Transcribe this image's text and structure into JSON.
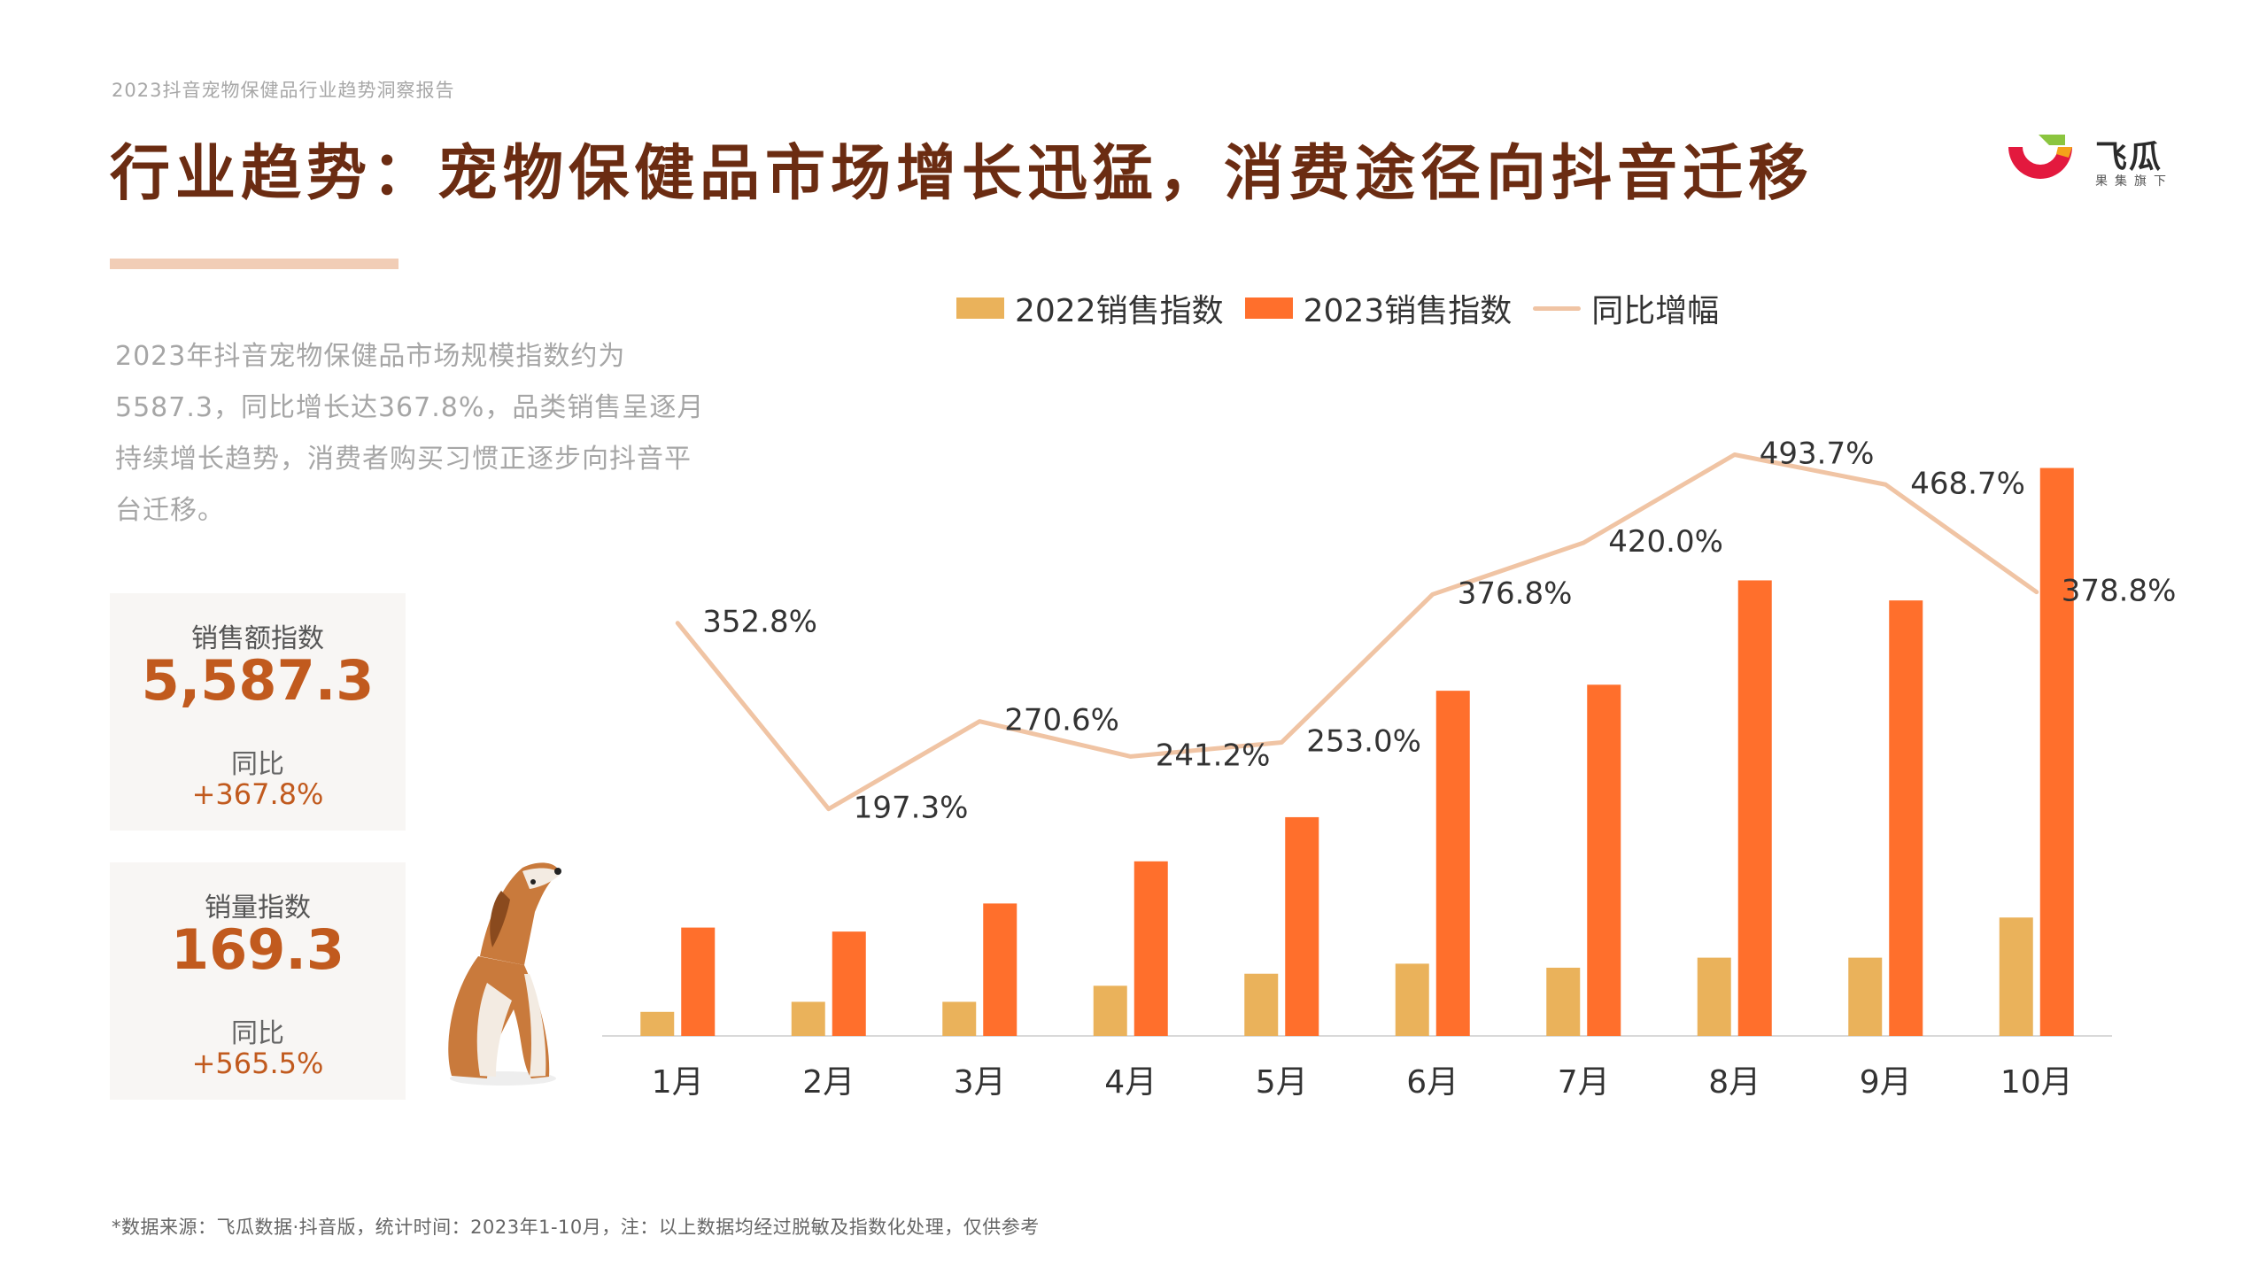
{
  "header": {
    "report_label": "2023抖音宠物保健品行业趋势洞察报告",
    "title": "行业趋势：宠物保健品市场增长迅猛，消费途径向抖音迁移"
  },
  "logo": {
    "name": "飞瓜",
    "tagline": "果集旗下",
    "colors": {
      "red": "#e3193e",
      "green": "#8bc53f",
      "orange": "#f4a21a"
    }
  },
  "description": "2023年抖音宠物保健品市场规模指数约为5587.3，同比增长达367.8%，品类销售呈逐月持续增长趋势，消费者购买习惯正逐步向抖音平台迁移。",
  "stats": [
    {
      "label": "销售额指数",
      "value": "5,587.3",
      "yoy_label": "同比",
      "yoy_value": "+367.8%"
    },
    {
      "label": "销量指数",
      "value": "169.3",
      "yoy_label": "同比",
      "yoy_value": "+565.5%"
    }
  ],
  "colors": {
    "series_2022": "#eab25b",
    "series_2023": "#ff6f2c",
    "yoy_line": "#f0c4a4",
    "title": "#6b2c12",
    "accent": "#c15a1e"
  },
  "chart_data": {
    "type": "bar",
    "title": "",
    "xlabel": "",
    "ylabel": "",
    "grid": false,
    "legend": "top",
    "categories": [
      "1月",
      "2月",
      "3月",
      "4月",
      "5月",
      "6月",
      "7月",
      "8月",
      "9月",
      "10月"
    ],
    "series": [
      {
        "name": "2022销售指数",
        "type": "bar",
        "values": [
          60,
          85,
          85,
          125,
          155,
          180,
          170,
          195,
          195,
          295
        ]
      },
      {
        "name": "2023销售指数",
        "type": "bar",
        "values": [
          270,
          260,
          330,
          435,
          545,
          860,
          875,
          1135,
          1085,
          1415
        ]
      },
      {
        "name": "同比增幅",
        "type": "line",
        "axis": "secondary",
        "values": [
          352.8,
          197.3,
          270.6,
          241.2,
          253.0,
          376.8,
          420.0,
          493.7,
          468.7,
          378.8
        ],
        "labels": [
          "352.8%",
          "197.3%",
          "270.6%",
          "241.2%",
          "253.0%",
          "376.8%",
          "420.0%",
          "493.7%",
          "468.7%",
          "378.8%"
        ]
      }
    ],
    "ylim": [
      0,
      1500
    ]
  },
  "footnote": "*数据来源：飞瓜数据·抖音版，统计时间：2023年1-10月，注：以上数据均经过脱敏及指数化处理，仅供参考"
}
